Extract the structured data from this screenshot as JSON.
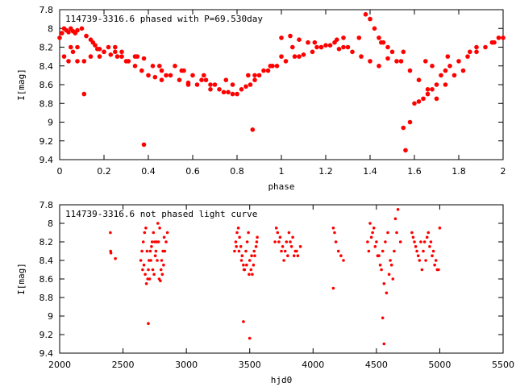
{
  "chart_data": [
    {
      "type": "scatter",
      "title": "114739-3316.6 phased with P=69.530day",
      "xlabel": "phase",
      "ylabel": "I[mag]",
      "xlim": [
        0,
        2
      ],
      "ylim": [
        9.4,
        7.8
      ],
      "y_inverted": true,
      "x_ticks": [
        "0",
        "0.2",
        "0.4",
        "0.6",
        "0.8",
        "1",
        "1.2",
        "1.4",
        "1.6",
        "1.8",
        "2"
      ],
      "y_ticks": [
        "7.8",
        "8",
        "8.2",
        "8.4",
        "8.6",
        "8.8",
        "9",
        "9.2",
        "9.4"
      ],
      "grid": false,
      "legend": "none",
      "marker_color": "#ff0000",
      "series": [
        {
          "x": [
            0.0,
            0.01,
            0.02,
            0.03,
            0.04,
            0.05,
            0.06,
            0.07,
            0.08,
            0.1,
            0.12,
            0.14,
            0.16,
            0.18,
            0.2,
            0.02,
            0.04,
            0.06,
            0.08,
            0.11,
            0.14,
            0.17,
            0.2,
            0.23,
            0.26,
            0.3,
            0.34,
            0.38,
            0.42,
            0.46,
            0.22,
            0.25,
            0.28,
            0.31,
            0.34,
            0.37,
            0.4,
            0.43,
            0.46,
            0.5,
            0.54,
            0.58,
            0.62,
            0.66,
            0.7,
            0.52,
            0.56,
            0.6,
            0.64,
            0.68,
            0.72,
            0.76,
            0.8,
            0.84,
            0.88,
            0.92,
            0.96,
            1.0,
            0.74,
            0.78,
            0.82,
            0.86,
            0.9,
            0.94,
            0.98,
            1.02,
            1.06,
            1.1,
            1.14,
            1.18,
            1.22,
            1.26,
            1.3,
            1.0,
            1.04,
            1.08,
            1.12,
            1.16,
            1.2,
            1.24,
            1.28,
            1.32,
            1.36,
            1.4,
            1.44,
            1.48,
            1.52,
            1.38,
            1.4,
            1.42,
            1.44,
            1.46,
            1.5,
            1.54,
            1.58,
            1.62,
            1.66,
            1.7,
            1.74,
            1.78,
            1.82,
            1.6,
            1.62,
            1.64,
            1.66,
            1.68,
            1.7,
            1.72,
            1.74,
            1.76,
            1.8,
            1.84,
            1.88,
            1.92,
            1.96,
            2.0,
            0.11,
            0.38,
            0.87,
            1.55,
            1.56,
            1.58,
            0.05,
            0.15,
            0.25,
            0.35,
            0.45,
            0.55,
            0.65,
            0.75,
            0.85,
            0.95,
            1.05,
            1.15,
            1.25,
            1.35,
            1.45,
            1.55,
            1.65,
            1.75,
            1.85,
            1.95,
            0.08,
            0.18,
            0.28,
            0.48,
            0.58,
            0.68,
            0.78,
            0.88,
            1.08,
            1.18,
            1.28,
            1.48,
            1.68,
            1.88,
            1.98
          ],
          "y": [
            8.1,
            8.05,
            8.0,
            8.02,
            8.04,
            8.0,
            8.03,
            8.05,
            8.02,
            8.0,
            8.08,
            8.12,
            8.18,
            8.22,
            8.25,
            8.3,
            8.35,
            8.25,
            8.2,
            8.35,
            8.3,
            8.22,
            8.25,
            8.28,
            8.3,
            8.35,
            8.3,
            8.32,
            8.4,
            8.45,
            8.2,
            8.25,
            8.3,
            8.35,
            8.4,
            8.45,
            8.5,
            8.52,
            8.55,
            8.5,
            8.55,
            8.58,
            8.6,
            8.55,
            8.6,
            8.4,
            8.45,
            8.5,
            8.55,
            8.6,
            8.65,
            8.68,
            8.7,
            8.62,
            8.55,
            8.45,
            8.4,
            8.3,
            8.68,
            8.7,
            8.65,
            8.6,
            8.5,
            8.45,
            8.4,
            8.35,
            8.3,
            8.28,
            8.25,
            8.2,
            8.18,
            8.22,
            8.2,
            8.1,
            8.08,
            8.12,
            8.15,
            8.2,
            8.18,
            8.15,
            8.2,
            8.25,
            8.3,
            8.35,
            8.4,
            8.32,
            8.35,
            7.85,
            7.9,
            8.0,
            8.1,
            8.15,
            8.25,
            8.35,
            8.45,
            8.55,
            8.65,
            8.75,
            8.6,
            8.5,
            8.45,
            8.8,
            8.78,
            8.75,
            8.7,
            8.65,
            8.6,
            8.5,
            8.45,
            8.4,
            8.35,
            8.3,
            8.25,
            8.2,
            8.15,
            8.1,
            8.7,
            9.24,
            9.08,
            9.06,
            9.3,
            9.0,
            8.2,
            8.15,
            8.2,
            8.3,
            8.4,
            8.45,
            8.5,
            8.55,
            8.5,
            8.4,
            8.2,
            8.15,
            8.12,
            8.1,
            8.15,
            8.25,
            8.35,
            8.3,
            8.25,
            8.15,
            8.35,
            8.3,
            8.25,
            8.5,
            8.6,
            8.65,
            8.6,
            8.5,
            8.3,
            8.2,
            8.1,
            8.2,
            8.4,
            8.2,
            8.1
          ]
        }
      ]
    },
    {
      "type": "scatter",
      "title": "114739-3316.6 not phased light curve",
      "xlabel": "hjd0",
      "ylabel": "I[mag]",
      "xlim": [
        2000,
        5500
      ],
      "ylim": [
        9.4,
        7.8
      ],
      "y_inverted": true,
      "x_ticks": [
        "2000",
        "2500",
        "3000",
        "3500",
        "4000",
        "4500",
        "5000",
        "5500"
      ],
      "y_ticks": [
        "7.8",
        "8",
        "8.2",
        "8.4",
        "8.6",
        "8.8",
        "9",
        "9.2",
        "9.4"
      ],
      "grid": false,
      "legend": "none",
      "marker_color": "#ff0000",
      "series": [
        {
          "x": [
            2400,
            2402,
            2405,
            2440,
            2640,
            2650,
            2660,
            2670,
            2680,
            2690,
            2700,
            2710,
            2720,
            2730,
            2740,
            2750,
            2760,
            2770,
            2780,
            2790,
            2800,
            2810,
            2820,
            2830,
            2840,
            2850,
            2655,
            2665,
            2675,
            2685,
            2695,
            2705,
            2715,
            2725,
            2735,
            2745,
            2755,
            2765,
            2775,
            2785,
            2795,
            2805,
            2815,
            2825,
            2700,
            3380,
            3390,
            3400,
            3410,
            3420,
            3430,
            3440,
            3450,
            3460,
            3470,
            3480,
            3490,
            3500,
            3510,
            3520,
            3530,
            3540,
            3550,
            3560,
            3395,
            3415,
            3435,
            3455,
            3475,
            3495,
            3515,
            3535,
            3555,
            3450,
            3500,
            3700,
            3720,
            3740,
            3760,
            3780,
            3800,
            3820,
            3840,
            3860,
            3880,
            3900,
            3710,
            3730,
            3750,
            3770,
            3790,
            3810,
            3830,
            3850,
            3870,
            4160,
            4170,
            4180,
            4200,
            4220,
            4240,
            4160,
            4430,
            4450,
            4470,
            4490,
            4510,
            4530,
            4550,
            4570,
            4590,
            4610,
            4630,
            4650,
            4670,
            4690,
            4440,
            4460,
            4480,
            4500,
            4520,
            4540,
            4560,
            4580,
            4600,
            4620,
            4640,
            4660,
            4550,
            4560,
            4780,
            4800,
            4820,
            4840,
            4860,
            4880,
            4900,
            4920,
            4940,
            4960,
            4980,
            5000,
            4790,
            4810,
            4830,
            4850,
            4870,
            4890,
            4910,
            4930,
            4950,
            4970,
            4990
          ],
          "y": [
            8.1,
            8.3,
            8.32,
            8.38,
            8.4,
            8.3,
            8.2,
            8.1,
            8.05,
            8.3,
            8.5,
            8.6,
            8.4,
            8.2,
            8.1,
            8.2,
            8.3,
            8.4,
            8.2,
            8.05,
            8.5,
            8.55,
            8.45,
            8.3,
            8.2,
            8.1,
            8.5,
            8.45,
            8.55,
            8.65,
            8.6,
            8.4,
            8.3,
            8.25,
            8.5,
            8.55,
            8.35,
            8.2,
            8.0,
            8.6,
            8.62,
            8.4,
            8.3,
            8.15,
            9.08,
            8.3,
            8.2,
            8.1,
            8.05,
            8.15,
            8.25,
            8.35,
            8.45,
            8.5,
            8.3,
            8.2,
            8.1,
            8.4,
            8.5,
            8.55,
            8.45,
            8.35,
            8.25,
            8.15,
            8.25,
            8.3,
            8.4,
            8.5,
            8.45,
            8.55,
            8.35,
            8.3,
            8.2,
            9.06,
            9.24,
            8.2,
            8.1,
            8.15,
            8.25,
            8.3,
            8.35,
            8.2,
            8.15,
            8.3,
            8.35,
            8.25,
            8.05,
            8.2,
            8.3,
            8.4,
            8.2,
            8.1,
            8.25,
            8.35,
            8.3,
            8.05,
            8.1,
            8.2,
            8.3,
            8.35,
            8.4,
            8.7,
            8.2,
            8.0,
            8.1,
            8.25,
            8.35,
            8.45,
            8.3,
            8.2,
            8.1,
            8.4,
            8.6,
            7.95,
            7.85,
            8.2,
            8.3,
            8.15,
            8.05,
            8.2,
            8.35,
            8.5,
            8.65,
            8.75,
            8.55,
            8.45,
            8.3,
            8.1,
            9.02,
            9.3,
            8.1,
            8.2,
            8.3,
            8.4,
            8.5,
            8.2,
            8.15,
            8.25,
            8.35,
            8.45,
            8.5,
            8.05,
            8.15,
            8.25,
            8.35,
            8.2,
            8.3,
            8.4,
            8.1,
            8.2,
            8.3,
            8.4,
            8.5
          ]
        }
      ]
    }
  ]
}
